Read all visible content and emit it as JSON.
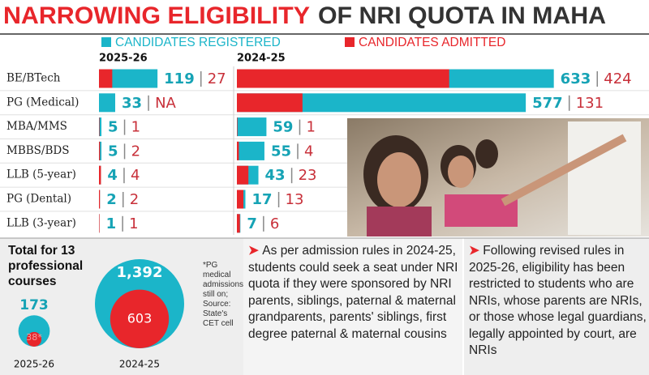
{
  "header": {
    "title_highlight": "NARROWING ELIGIBILITY",
    "title_rest": "OF NRI QUOTA IN MAHA"
  },
  "chart_data": [
    {
      "type": "bar",
      "subtitle": "2025-26",
      "categories": [
        "BE/BTech",
        "PG (Medical)",
        "MBA/MMS",
        "MBBS/BDS",
        "LLB (5-year)",
        "PG (Dental)",
        "LLB (3-year)"
      ],
      "xlim": [
        0,
        160
      ],
      "series": [
        {
          "name": "CANDIDATES REGISTERED",
          "color": "#1bb5c9",
          "values": [
            119,
            33,
            5,
            5,
            4,
            2,
            1
          ]
        },
        {
          "name": "CANDIDATES ADMITTED",
          "color": "#e8262b",
          "values": [
            27,
            null,
            1,
            2,
            4,
            2,
            1
          ],
          "value_labels": [
            "27",
            "NA",
            "1",
            "2",
            "4",
            "2",
            "1"
          ]
        }
      ]
    },
    {
      "type": "bar",
      "subtitle": "2024-25",
      "xlim": [
        0,
        640
      ],
      "series": [
        {
          "color": "#1bb5c9",
          "values": [
            633,
            577,
            59,
            55,
            43,
            17,
            7
          ]
        },
        {
          "color": "#e8262b",
          "values": [
            424,
            131,
            1,
            4,
            23,
            13,
            6
          ]
        }
      ]
    },
    {
      "type": "circles",
      "title": "Total for 13 professional courses",
      "categories": [
        "2025-26",
        "2024-25"
      ],
      "series": [
        {
          "color": "#1bb5c9",
          "values": [
            173,
            1392
          ],
          "value_labels": [
            "173",
            "1,392"
          ]
        },
        {
          "color": "#e8262b",
          "values": [
            38,
            603
          ],
          "value_labels": [
            "38*",
            "603"
          ]
        }
      ],
      "footnote": "*PG medical admissions still on; Source: State's CET cell"
    }
  ],
  "notes": [
    "As per admission rules in 2024-25, students could seek a seat under NRI quota if they were sponsored by NRI parents, siblings, paternal & maternal grandparents, parents' siblings, first degree paternal & maternal cousins",
    "Following revised rules in 2025-26, eligibility has been restricted to students who are NRIs, whose parents are NRIs, or those whose legal guardians, legally appointed by court, are NRIs"
  ]
}
